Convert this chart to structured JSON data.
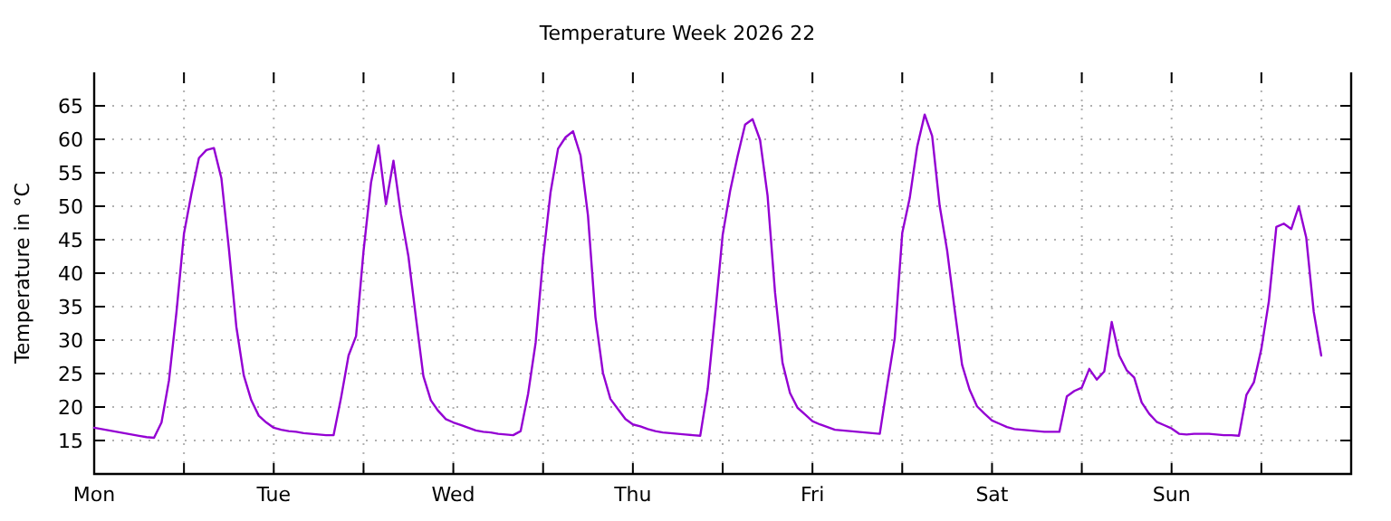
{
  "chart_data": {
    "type": "line",
    "title": "Temperature Week 2026 22",
    "ylabel": "Temperature in °C",
    "grid": true,
    "line_style": "solid",
    "categories": [
      "Mon",
      null,
      null,
      null,
      null,
      null,
      null,
      null,
      null,
      null,
      null,
      null,
      null,
      null,
      null,
      null,
      null,
      null,
      null,
      null,
      null,
      null,
      null,
      null,
      "Tue",
      null,
      null,
      null,
      null,
      null,
      null,
      null,
      null,
      null,
      null,
      null,
      null,
      null,
      null,
      null,
      null,
      null,
      null,
      null,
      null,
      null,
      null,
      null,
      "Wed",
      null,
      null,
      null,
      null,
      null,
      null,
      null,
      null,
      null,
      null,
      null,
      null,
      null,
      null,
      null,
      null,
      null,
      null,
      null,
      null,
      null,
      null,
      null,
      "Thu",
      null,
      null,
      null,
      null,
      null,
      null,
      null,
      null,
      null,
      null,
      null,
      null,
      null,
      null,
      null,
      null,
      null,
      null,
      null,
      null,
      null,
      null,
      null,
      "Fri",
      null,
      null,
      null,
      null,
      null,
      null,
      null,
      null,
      null,
      null,
      null,
      null,
      null,
      null,
      null,
      null,
      null,
      null,
      null,
      null,
      null,
      null,
      null,
      "Sat",
      null,
      null,
      null,
      null,
      null,
      null,
      null,
      null,
      null,
      null,
      null,
      null,
      null,
      null,
      null,
      null,
      null,
      null,
      null,
      null,
      null,
      null,
      null,
      "Sun",
      null,
      null,
      null,
      null,
      null,
      null,
      null,
      null,
      null,
      null,
      null,
      null,
      null,
      null,
      null,
      null,
      null,
      null,
      null,
      null,
      null,
      null,
      null
    ],
    "ylim": [
      10,
      70
    ],
    "yticks": [
      15,
      20,
      25,
      30,
      35,
      40,
      45,
      50,
      55,
      60,
      65
    ],
    "series": [
      {
        "color": "#9400d3",
        "values": [
          16.9,
          16.7,
          16.5,
          16.3,
          16.1,
          15.9,
          15.7,
          15.5,
          15.4,
          17.7,
          24.0,
          34.2,
          45.9,
          51.9,
          57.2,
          58.4,
          58.7,
          54.2,
          43.7,
          32.0,
          24.7,
          21.0,
          18.7,
          17.7,
          16.9,
          16.6,
          16.4,
          16.3,
          16.1,
          16.0,
          15.9,
          15.8,
          15.8,
          21.4,
          27.7,
          30.6,
          43.3,
          53.5,
          59.1,
          50.3,
          56.8,
          48.8,
          42.5,
          33.4,
          24.6,
          21.0,
          19.4,
          18.2,
          17.7,
          17.3,
          16.9,
          16.5,
          16.3,
          16.2,
          16.0,
          15.9,
          15.8,
          16.4,
          22.0,
          29.6,
          42.2,
          52.1,
          58.6,
          60.3,
          61.2,
          57.6,
          48.6,
          33.4,
          25.1,
          21.2,
          19.7,
          18.2,
          17.4,
          17.1,
          16.7,
          16.4,
          16.2,
          16.1,
          16.0,
          15.9,
          15.8,
          15.7,
          22.7,
          33.9,
          45.7,
          52.3,
          57.5,
          62.2,
          63.0,
          59.9,
          51.6,
          37.1,
          26.6,
          22.1,
          19.9,
          18.9,
          17.9,
          17.4,
          17.0,
          16.6,
          16.5,
          16.4,
          16.3,
          16.2,
          16.1,
          16.0,
          23.3,
          30.3,
          46.0,
          51.2,
          58.9,
          63.7,
          60.5,
          50.1,
          43.4,
          34.6,
          26.3,
          22.6,
          20.1,
          19.0,
          18.0,
          17.5,
          17.0,
          16.7,
          16.6,
          16.5,
          16.4,
          16.3,
          16.3,
          16.3,
          21.6,
          22.4,
          22.9,
          25.7,
          24.1,
          25.3,
          32.7,
          27.7,
          25.5,
          24.4,
          20.7,
          19.0,
          17.8,
          17.3,
          16.8,
          16.0,
          15.9,
          16.0,
          16.0,
          16.0,
          15.9,
          15.8,
          15.8,
          15.7,
          21.8,
          23.7,
          28.7,
          35.8,
          46.9,
          47.4,
          46.6,
          50.0,
          45.3,
          34.2,
          27.7,
          null,
          null,
          null
        ]
      }
    ]
  }
}
